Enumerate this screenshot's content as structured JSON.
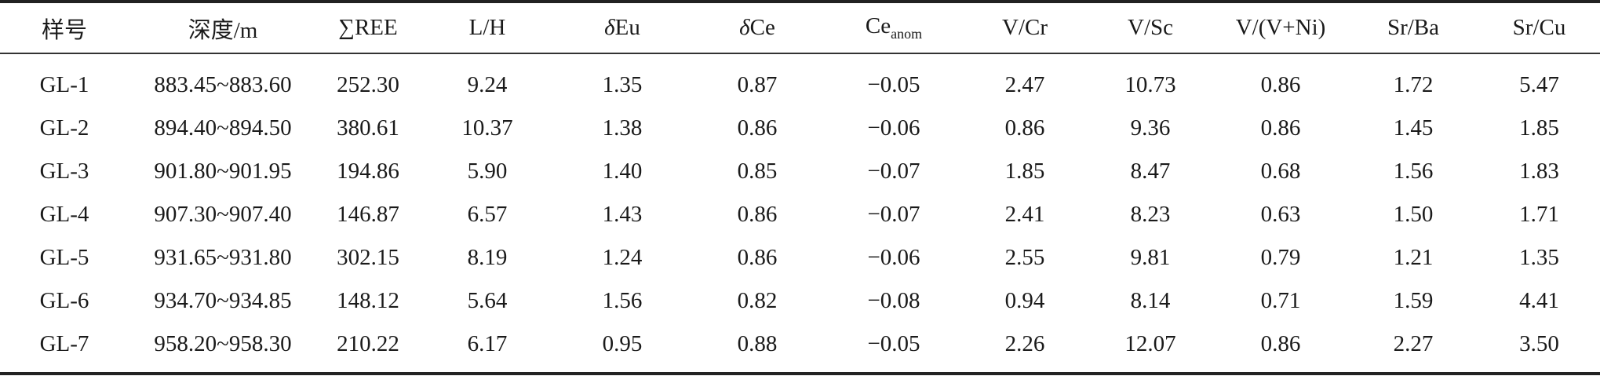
{
  "table": {
    "headers": {
      "sample": "样号",
      "depth": "深度/m",
      "ree_symbol": "∑",
      "ree_text": "REE",
      "lh": "L/H",
      "delta_eu_symbol": "δ",
      "delta_eu_text": "Eu",
      "delta_ce_symbol": "δ",
      "delta_ce_text": "Ce",
      "ce_anom_base": "Ce",
      "ce_anom_sub": "anom",
      "v_cr": "V/Cr",
      "v_sc": "V/Sc",
      "v_vni": "V/(V+Ni)",
      "sr_ba": "Sr/Ba",
      "sr_cu": "Sr/Cu"
    },
    "rows": [
      [
        "GL-1",
        "883.45~883.60",
        "252.30",
        "9.24",
        "1.35",
        "0.87",
        "−0.05",
        "2.47",
        "10.73",
        "0.86",
        "1.72",
        "5.47"
      ],
      [
        "GL-2",
        "894.40~894.50",
        "380.61",
        "10.37",
        "1.38",
        "0.86",
        "−0.06",
        "0.86",
        "9.36",
        "0.86",
        "1.45",
        "1.85"
      ],
      [
        "GL-3",
        "901.80~901.95",
        "194.86",
        "5.90",
        "1.40",
        "0.85",
        "−0.07",
        "1.85",
        "8.47",
        "0.68",
        "1.56",
        "1.83"
      ],
      [
        "GL-4",
        "907.30~907.40",
        "146.87",
        "6.57",
        "1.43",
        "0.86",
        "−0.07",
        "2.41",
        "8.23",
        "0.63",
        "1.50",
        "1.71"
      ],
      [
        "GL-5",
        "931.65~931.80",
        "302.15",
        "8.19",
        "1.24",
        "0.86",
        "−0.06",
        "2.55",
        "9.81",
        "0.79",
        "1.21",
        "1.35"
      ],
      [
        "GL-6",
        "934.70~934.85",
        "148.12",
        "5.64",
        "1.56",
        "0.82",
        "−0.08",
        "0.94",
        "8.14",
        "0.71",
        "1.59",
        "4.41"
      ],
      [
        "GL-7",
        "958.20~958.30",
        "210.22",
        "6.17",
        "0.95",
        "0.88",
        "−0.05",
        "2.26",
        "12.07",
        "0.86",
        "2.27",
        "3.50"
      ]
    ]
  }
}
